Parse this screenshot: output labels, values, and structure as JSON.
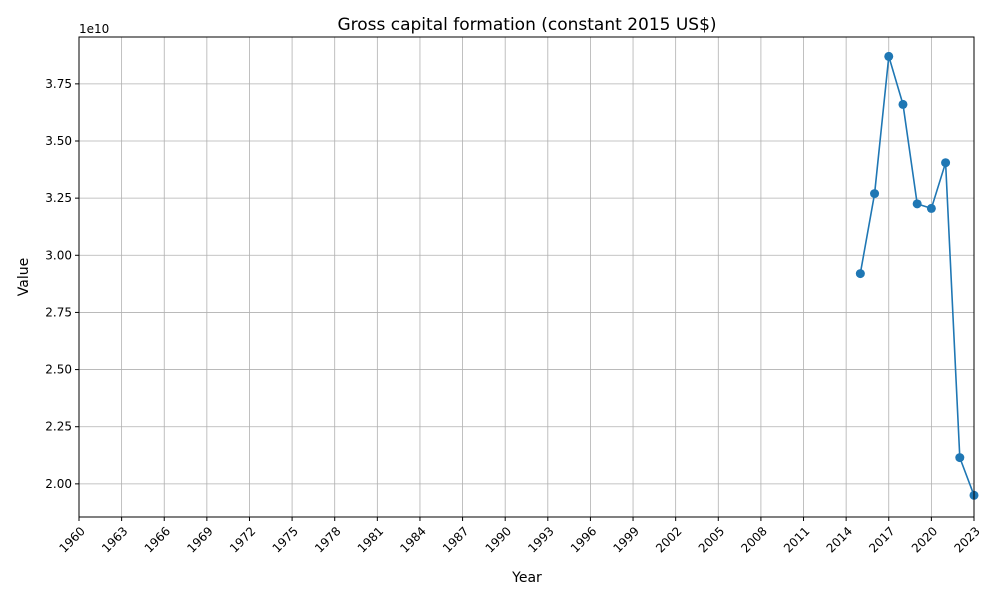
{
  "chart_data": {
    "type": "line",
    "title": "Gross capital formation (constant 2015 US$)",
    "xlabel": "Year",
    "ylabel": "Value",
    "y_offset_label": "1e10",
    "x_ticks": [
      1960,
      1963,
      1966,
      1969,
      1972,
      1975,
      1978,
      1981,
      1984,
      1987,
      1990,
      1993,
      1996,
      1999,
      2002,
      2005,
      2008,
      2011,
      2014,
      2017,
      2020,
      2023
    ],
    "y_ticks": [
      2.0,
      2.25,
      2.5,
      2.75,
      3.0,
      3.25,
      3.5,
      3.75
    ],
    "y_tick_labels": [
      "2.00",
      "2.25",
      "2.50",
      "2.75",
      "3.00",
      "3.25",
      "3.50",
      "3.75"
    ],
    "xlim": [
      1960,
      2023
    ],
    "ylim": [
      1.855,
      3.955
    ],
    "y_scale_note": "values in units of 1e10",
    "grid": true,
    "series": [
      {
        "color": "#1f77b4",
        "marker": "circle",
        "x": [
          2015,
          2016,
          2017,
          2018,
          2019,
          2020,
          2021,
          2022,
          2023
        ],
        "y": [
          2.92,
          3.27,
          3.87,
          3.66,
          3.225,
          3.205,
          3.405,
          2.115,
          1.95
        ]
      }
    ]
  }
}
